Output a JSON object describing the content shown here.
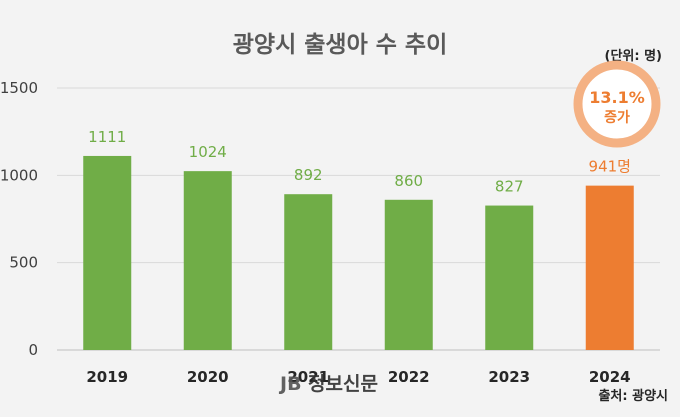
{
  "chart_data": {
    "type": "bar",
    "title": "광양시 출생아 수 추이",
    "unit_note": "(단위: 명)",
    "categories": [
      "2019",
      "2020",
      "2021",
      "2022",
      "2023",
      "2024"
    ],
    "values": [
      1111,
      1024,
      892,
      860,
      827,
      941
    ],
    "data_labels": [
      "1111",
      "1024",
      "892",
      "860",
      "827",
      "941명"
    ],
    "ylim": [
      0,
      1500
    ],
    "yticks": [
      0,
      500,
      1000,
      1500
    ],
    "grid": true,
    "colors": {
      "default": "#70ad47",
      "highlight": "#ed7d31"
    },
    "highlight_index": 5,
    "annotation": {
      "line1": "13.1%",
      "line2": "증가"
    },
    "source": "출처: 광양시"
  },
  "watermark": {
    "logo": "JB",
    "name": "정보신문"
  }
}
